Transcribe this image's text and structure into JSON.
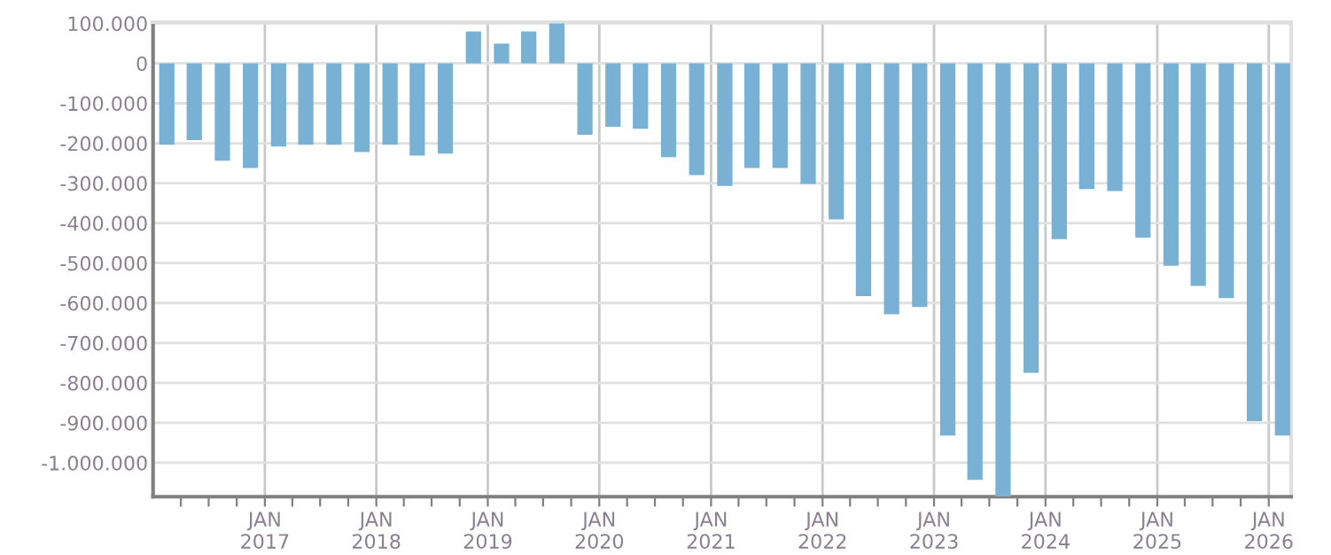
{
  "chart_data": {
    "type": "bar",
    "color": "#78b1d3",
    "grid": true,
    "x": [
      "2016-02-15",
      "2016-05-15",
      "2016-08-15",
      "2016-11-15",
      "2017-02-15",
      "2017-05-15",
      "2017-08-15",
      "2017-11-15",
      "2018-02-15",
      "2018-05-15",
      "2018-08-15",
      "2018-11-15",
      "2019-02-15",
      "2019-05-15",
      "2019-08-15",
      "2019-11-15",
      "2020-02-15",
      "2020-05-15",
      "2020-08-15",
      "2020-11-15",
      "2021-02-15",
      "2021-05-15",
      "2021-08-15",
      "2021-11-15",
      "2022-02-15",
      "2022-05-15",
      "2022-08-15",
      "2022-11-15",
      "2023-02-15",
      "2023-05-15",
      "2023-08-15",
      "2023-11-15",
      "2024-02-15",
      "2024-05-15",
      "2024-08-15",
      "2024-11-15",
      "2025-02-15",
      "2025-05-15",
      "2025-08-15",
      "2025-11-15",
      "2026-02-15"
    ],
    "values": [
      -204000,
      -192000,
      -244000,
      -262000,
      -208000,
      -204000,
      -204000,
      -222000,
      -204000,
      -231000,
      -226000,
      80000,
      49000,
      80000,
      100000,
      -179000,
      -159000,
      -164000,
      -235000,
      -280000,
      -307000,
      -262000,
      -262000,
      -302000,
      -391000,
      -583000,
      -628000,
      -610000,
      -932000,
      -1043000,
      -1085000,
      -775000,
      -440000,
      -315000,
      -320000,
      -436000,
      -507000,
      -557000,
      -588000,
      -896000,
      -932000
    ],
    "xlim": [
      "2016-01-01",
      "2026-03-15"
    ],
    "xticks": [
      {
        "value": "2016-04-01",
        "label": null
      },
      {
        "value": "2016-07-01",
        "label": null
      },
      {
        "value": "2016-10-01",
        "label": null
      },
      {
        "value": "2017-01-01",
        "label": "JAN\n2017"
      },
      {
        "value": "2017-04-01",
        "label": null
      },
      {
        "value": "2017-07-01",
        "label": null
      },
      {
        "value": "2017-10-01",
        "label": null
      },
      {
        "value": "2018-01-01",
        "label": "JAN\n2018"
      },
      {
        "value": "2018-04-01",
        "label": null
      },
      {
        "value": "2018-07-01",
        "label": null
      },
      {
        "value": "2018-10-01",
        "label": null
      },
      {
        "value": "2019-01-01",
        "label": "JAN\n2019"
      },
      {
        "value": "2019-04-01",
        "label": null
      },
      {
        "value": "2019-07-01",
        "label": null
      },
      {
        "value": "2019-10-01",
        "label": null
      },
      {
        "value": "2020-01-01",
        "label": "JAN\n2020"
      },
      {
        "value": "2020-04-01",
        "label": null
      },
      {
        "value": "2020-07-01",
        "label": null
      },
      {
        "value": "2020-10-01",
        "label": null
      },
      {
        "value": "2021-01-01",
        "label": "JAN\n2021"
      },
      {
        "value": "2021-04-01",
        "label": null
      },
      {
        "value": "2021-07-01",
        "label": null
      },
      {
        "value": "2021-10-01",
        "label": null
      },
      {
        "value": "2022-01-01",
        "label": "JAN\n2022"
      },
      {
        "value": "2022-04-01",
        "label": null
      },
      {
        "value": "2022-07-01",
        "label": null
      },
      {
        "value": "2022-10-01",
        "label": null
      },
      {
        "value": "2023-01-01",
        "label": "JAN\n2023"
      },
      {
        "value": "2023-04-01",
        "label": null
      },
      {
        "value": "2023-07-01",
        "label": null
      },
      {
        "value": "2023-10-01",
        "label": null
      },
      {
        "value": "2024-01-01",
        "label": "JAN\n2024"
      },
      {
        "value": "2024-04-01",
        "label": null
      },
      {
        "value": "2024-07-01",
        "label": null
      },
      {
        "value": "2024-10-01",
        "label": null
      },
      {
        "value": "2025-01-01",
        "label": "JAN\n2025"
      },
      {
        "value": "2025-04-01",
        "label": null
      },
      {
        "value": "2025-07-01",
        "label": null
      },
      {
        "value": "2025-10-01",
        "label": null
      },
      {
        "value": "2026-01-01",
        "label": "JAN\n2026"
      }
    ],
    "ylim": [
      -1085000,
      103000
    ],
    "yticks": [
      {
        "value": 100000,
        "label": "100.000"
      },
      0,
      {
        "value": -100000,
        "label": "-100.000"
      },
      {
        "value": -200000,
        "label": "-200.000"
      },
      {
        "value": -300000,
        "label": "-300.000"
      },
      {
        "value": -400000,
        "label": "-400.000"
      },
      {
        "value": -500000,
        "label": "-500.000"
      },
      {
        "value": -600000,
        "label": "-600.000"
      },
      {
        "value": -700000,
        "label": "-700.000"
      },
      {
        "value": -800000,
        "label": "-800.000"
      },
      {
        "value": -900000,
        "label": "-900.000"
      },
      {
        "value": -1000000,
        "label": "-1.000.000"
      }
    ]
  }
}
